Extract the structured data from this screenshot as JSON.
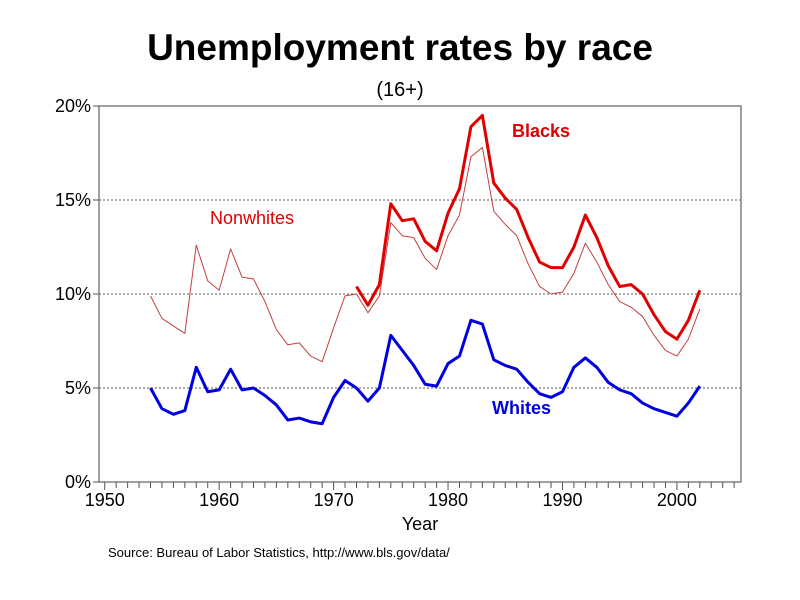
{
  "chart_data": {
    "type": "line",
    "title": "Unemployment rates by race",
    "subtitle": "(16+)",
    "xlabel": "Year",
    "ylabel": "",
    "xlim": [
      1949.5,
      2005.6
    ],
    "ylim": [
      0,
      20
    ],
    "xticks": [
      1950,
      1960,
      1970,
      1980,
      1990,
      2000
    ],
    "xtick_labels": [
      "1950",
      "1960",
      "1970",
      "1980",
      "1990",
      "2000"
    ],
    "yticks": [
      0,
      5,
      10,
      15,
      20
    ],
    "ytick_labels": [
      "0%",
      "5%",
      "10%",
      "15%",
      "20%"
    ],
    "grid": "horizontal dotted",
    "source": "Source: Bureau of Labor Statistics,  http://www.bls.gov/data/",
    "series": [
      {
        "name": "Nonwhites",
        "color": "#c04040",
        "start": 1954,
        "values": [
          9.9,
          8.7,
          8.3,
          7.9,
          12.6,
          10.7,
          10.2,
          12.4,
          10.9,
          10.8,
          9.6,
          8.1,
          7.3,
          7.4,
          6.7,
          6.4,
          8.2,
          9.9,
          10.0,
          9.0,
          9.9,
          13.8,
          13.1,
          13.0,
          11.9,
          11.3,
          13.1,
          14.2,
          17.3,
          17.8,
          14.4,
          13.7,
          13.1,
          11.6,
          10.4,
          10.0,
          10.1,
          11.1,
          12.7,
          11.7,
          10.5,
          9.6,
          9.3,
          8.8,
          7.8,
          7.0,
          6.7,
          7.6,
          9.2
        ]
      },
      {
        "name": "Blacks",
        "color": "#e00000",
        "start": 1972,
        "values": [
          10.4,
          9.4,
          10.5,
          14.8,
          13.9,
          14.0,
          12.8,
          12.3,
          14.3,
          15.6,
          18.9,
          19.5,
          15.9,
          15.1,
          14.5,
          13.0,
          11.7,
          11.4,
          11.4,
          12.5,
          14.2,
          13.0,
          11.5,
          10.4,
          10.5,
          10.0,
          8.9,
          8.0,
          7.6,
          8.6,
          10.2
        ]
      },
      {
        "name": "Whites",
        "color": "#0000e0",
        "start": 1954,
        "values": [
          5.0,
          3.9,
          3.6,
          3.8,
          6.1,
          4.8,
          4.9,
          6.0,
          4.9,
          5.0,
          4.6,
          4.1,
          3.3,
          3.4,
          3.2,
          3.1,
          4.5,
          5.4,
          5.0,
          4.3,
          5.0,
          7.8,
          7.0,
          6.2,
          5.2,
          5.1,
          6.3,
          6.7,
          8.6,
          8.4,
          6.5,
          6.2,
          6.0,
          5.3,
          4.7,
          4.5,
          4.8,
          6.1,
          6.6,
          6.1,
          5.3,
          4.9,
          4.7,
          4.2,
          3.9,
          3.7,
          3.5,
          4.2,
          5.1
        ]
      }
    ]
  }
}
